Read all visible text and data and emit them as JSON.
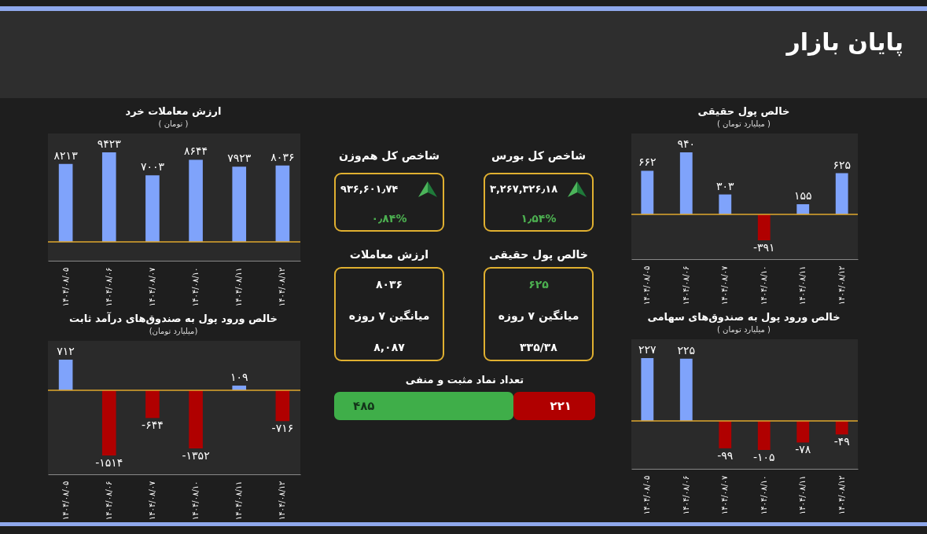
{
  "chart_data": [
    {
      "type": "other",
      "title": "پایان بازار"
    },
    {
      "type": "bar",
      "title": "ارزش معاملات خرد",
      "subtitle": "( تومان )",
      "categories": [
        "۱۴۰۴/۰۸/۰۵",
        "۱۴۰۴/۰۸/۰۶",
        "۱۴۰۴/۰۸/۰۷",
        "۱۴۰۴/۰۸/۱۰",
        "۱۴۰۴/۰۸/۱۱",
        "۱۴۰۴/۰۸/۱۲"
      ],
      "values": [
        8213,
        9423,
        7003,
        8644,
        7923,
        8036
      ],
      "value_labels": [
        "۸۲۱۳",
        "۹۴۲۳",
        "۷۰۰۳",
        "۸۶۴۴",
        "۷۹۲۳",
        "۸۰۳۶"
      ],
      "colors": [
        "#7fa3fb",
        "#7fa3fb",
        "#7fa3fb",
        "#7fa3fb",
        "#7fa3fb",
        "#7fa3fb"
      ],
      "ref_lines": [
        {
          "axis": "y",
          "value": 0,
          "color": "#e0a82e"
        }
      ],
      "tick_labels": "x"
    },
    {
      "type": "bar",
      "title": "خالص پول حقیقی",
      "subtitle": "( میلیارد تومان )",
      "categories": [
        "۱۴۰۴/۰۸/۰۵",
        "۱۴۰۴/۰۸/۰۶",
        "۱۴۰۴/۰۸/۰۷",
        "۱۴۰۴/۰۸/۱۰",
        "۱۴۰۴/۰۸/۱۱",
        "۱۴۰۴/۰۸/۱۲"
      ],
      "values": [
        662,
        940,
        303,
        -391,
        155,
        625
      ],
      "value_labels": [
        "۶۶۲",
        "۹۴۰",
        "۳۰۳",
        "-۳۹۱",
        "۱۵۵",
        "۶۲۵"
      ],
      "colors": [
        "#7fa3fb",
        "#7fa3fb",
        "#7fa3fb",
        "#b00000",
        "#7fa3fb",
        "#7fa3fb"
      ],
      "ref_lines": [
        {
          "axis": "y",
          "value": 0,
          "color": "#e0a82e"
        }
      ],
      "tick_labels": "x"
    },
    {
      "type": "other",
      "title": "شاخص کل هم‌وزن",
      "annotations": [
        "۹۳۶,۶۰۱٫۷۴",
        "۰٫۸۴%"
      ]
    },
    {
      "type": "other",
      "title": "شاخص کل بورس",
      "annotations": [
        "۳,۲۶۷,۳۲۶٫۱۸",
        "۱٫۵۴%"
      ]
    },
    {
      "type": "other",
      "title": "ارزش معاملات",
      "annotations": [
        "۸۰۳۶",
        "میانگین ۷ روزه",
        "۸,۰۸۷"
      ]
    },
    {
      "type": "other",
      "title": "خالص پول حقیقی",
      "annotations": [
        "۶۲۵",
        "میانگین ۷ روزه",
        "۳۳۵/۳۸"
      ]
    },
    {
      "type": "bar",
      "title": "تعداد نماد مثبت و منفی",
      "orientation": "horizontal",
      "stacked": true,
      "categories": [
        null
      ],
      "tick_labels": false,
      "series": [
        {
          "color": "#3fae49",
          "values": [
            485
          ],
          "value_labels": [
            "۴۸۵"
          ]
        },
        {
          "color": "#b00000",
          "values": [
            221
          ],
          "value_labels": [
            "۲۲۱"
          ]
        }
      ]
    },
    {
      "type": "bar",
      "title": "خالص ورود پول به صندوق‌های درآمد ثابت",
      "subtitle": "(میلیارد تومان)",
      "categories": [
        "۱۴۰۴/۰۸/۰۵",
        "۱۴۰۴/۰۸/۰۶",
        "۱۴۰۴/۰۸/۰۷",
        "۱۴۰۴/۰۸/۱۰",
        "۱۴۰۴/۰۸/۱۱",
        "۱۴۰۴/۰۸/۱۲"
      ],
      "values": [
        712,
        -1514,
        -644,
        -1352,
        109,
        -716
      ],
      "value_labels": [
        "۷۱۲",
        "-۱۵۱۴",
        "-۶۴۴",
        "-۱۳۵۲",
        "۱۰۹",
        "-۷۱۶"
      ],
      "colors": [
        "#7fa3fb",
        "#b00000",
        "#b00000",
        "#b00000",
        "#7fa3fb",
        "#b00000"
      ],
      "ref_lines": [
        {
          "axis": "y",
          "value": 0,
          "color": "#e0a82e"
        }
      ],
      "tick_labels": "x"
    },
    {
      "type": "bar",
      "title": "خالص ورود پول به صندوق‌های سهامی",
      "subtitle": "( میلیارد تومان )",
      "categories": [
        "۱۴۰۴/۰۸/۰۵",
        "۱۴۰۴/۰۸/۰۶",
        "۱۴۰۴/۰۸/۰۷",
        "۱۴۰۴/۰۸/۱۰",
        "۱۴۰۴/۰۸/۱۱",
        "۱۴۰۴/۰۸/۱۲"
      ],
      "values": [
        227,
        225,
        -99,
        -105,
        -78,
        -49
      ],
      "value_labels": [
        "۲۲۷",
        "۲۲۵",
        "-۹۹",
        "-۱۰۵",
        "-۷۸",
        "-۴۹"
      ],
      "colors": [
        "#7fa3fb",
        "#7fa3fb",
        "#b00000",
        "#b00000",
        "#b00000",
        "#b00000"
      ],
      "ref_lines": [
        {
          "axis": "y",
          "value": 0,
          "color": "#e0a82e"
        }
      ],
      "tick_labels": "x"
    }
  ]
}
